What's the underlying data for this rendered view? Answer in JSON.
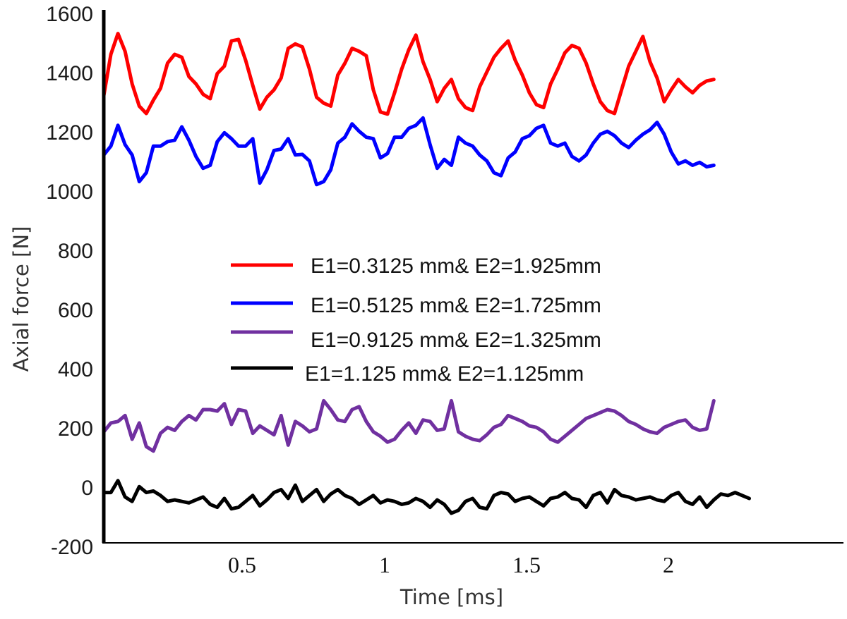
{
  "chart_data": {
    "type": "line",
    "title": "",
    "xlabel": "Time [ms]",
    "ylabel": "Axial force [N]",
    "xlim": [
      0,
      2.6
    ],
    "ylim": [
      -200,
      1600
    ],
    "x_ticks": [
      "0.5",
      "1",
      "1.5",
      "2"
    ],
    "y_ticks": [
      "1600",
      "1400",
      "1200",
      "1000",
      "800",
      "600",
      "400",
      "200",
      "0",
      "-200"
    ],
    "grid": false,
    "legend_position": "center",
    "series": [
      {
        "name": "E1=0.3125 mm& E2=1.925mm",
        "color": "#ff0000",
        "x": [
          0,
          0.025,
          0.05,
          0.075,
          0.1,
          0.125,
          0.15,
          0.175,
          0.2,
          0.225,
          0.25,
          0.275,
          0.3,
          0.325,
          0.35,
          0.375,
          0.4,
          0.425,
          0.45,
          0.475,
          0.5,
          0.525,
          0.55,
          0.575,
          0.6,
          0.625,
          0.65,
          0.675,
          0.7,
          0.725,
          0.75,
          0.775,
          0.8,
          0.825,
          0.85,
          0.875,
          0.9,
          0.925,
          0.95,
          0.975,
          1.0,
          1.025,
          1.05,
          1.075,
          1.1,
          1.125,
          1.15,
          1.175,
          1.2,
          1.225,
          1.25,
          1.275,
          1.3,
          1.325,
          1.35,
          1.375,
          1.4,
          1.425,
          1.45,
          1.475,
          1.5,
          1.525,
          1.55,
          1.575,
          1.6,
          1.625,
          1.65,
          1.675,
          1.7,
          1.725,
          1.75,
          1.775,
          1.8,
          1.825,
          1.85,
          1.875,
          1.9,
          1.925,
          1.95,
          1.975,
          2.0,
          2.025,
          2.05,
          2.075,
          2.1,
          2.125,
          2.15
        ],
        "values": [
          1310,
          1450,
          1520,
          1460,
          1350,
          1275,
          1250,
          1295,
          1335,
          1420,
          1450,
          1440,
          1375,
          1350,
          1315,
          1300,
          1385,
          1410,
          1495,
          1500,
          1430,
          1345,
          1265,
          1305,
          1330,
          1370,
          1470,
          1485,
          1475,
          1400,
          1305,
          1285,
          1275,
          1380,
          1420,
          1470,
          1460,
          1445,
          1330,
          1255,
          1248,
          1320,
          1400,
          1465,
          1515,
          1425,
          1365,
          1290,
          1335,
          1365,
          1300,
          1270,
          1260,
          1340,
          1390,
          1440,
          1470,
          1495,
          1430,
          1380,
          1320,
          1280,
          1270,
          1350,
          1400,
          1455,
          1480,
          1470,
          1420,
          1350,
          1290,
          1260,
          1250,
          1330,
          1410,
          1460,
          1510,
          1425,
          1370,
          1290,
          1330,
          1365,
          1340,
          1320,
          1345,
          1360,
          1365
        ]
      },
      {
        "name": "E1=0.5125 mm& E2=1.725mm",
        "color": "#0000ff",
        "x": [
          0,
          0.025,
          0.05,
          0.075,
          0.1,
          0.125,
          0.15,
          0.175,
          0.2,
          0.225,
          0.25,
          0.275,
          0.3,
          0.325,
          0.35,
          0.375,
          0.4,
          0.425,
          0.45,
          0.475,
          0.5,
          0.525,
          0.55,
          0.575,
          0.6,
          0.625,
          0.65,
          0.675,
          0.7,
          0.725,
          0.75,
          0.775,
          0.8,
          0.825,
          0.85,
          0.875,
          0.9,
          0.925,
          0.95,
          0.975,
          1.0,
          1.025,
          1.05,
          1.075,
          1.1,
          1.125,
          1.15,
          1.175,
          1.2,
          1.225,
          1.25,
          1.275,
          1.3,
          1.325,
          1.35,
          1.375,
          1.4,
          1.425,
          1.45,
          1.475,
          1.5,
          1.525,
          1.55,
          1.575,
          1.6,
          1.625,
          1.65,
          1.675,
          1.7,
          1.725,
          1.75,
          1.775,
          1.8,
          1.825,
          1.85,
          1.875,
          1.9,
          1.925,
          1.95,
          1.975,
          2.0,
          2.025,
          2.05,
          2.075,
          2.1,
          2.125,
          2.15
        ],
        "values": [
          1110,
          1140,
          1210,
          1145,
          1110,
          1020,
          1050,
          1140,
          1140,
          1155,
          1160,
          1205,
          1160,
          1105,
          1065,
          1075,
          1155,
          1185,
          1165,
          1140,
          1140,
          1165,
          1015,
          1060,
          1125,
          1130,
          1165,
          1110,
          1112,
          1090,
          1010,
          1020,
          1060,
          1150,
          1170,
          1215,
          1190,
          1170,
          1165,
          1100,
          1115,
          1170,
          1170,
          1200,
          1210,
          1235,
          1145,
          1065,
          1095,
          1075,
          1170,
          1150,
          1140,
          1110,
          1090,
          1050,
          1040,
          1100,
          1120,
          1165,
          1175,
          1200,
          1210,
          1150,
          1140,
          1150,
          1105,
          1090,
          1110,
          1150,
          1180,
          1190,
          1175,
          1150,
          1135,
          1160,
          1180,
          1195,
          1220,
          1180,
          1120,
          1080,
          1090,
          1075,
          1085,
          1070,
          1075
        ]
      },
      {
        "name": "E1=0.9125 mm& E2=1.325mm",
        "color": "#7030a0",
        "x": [
          0,
          0.025,
          0.05,
          0.075,
          0.1,
          0.125,
          0.15,
          0.175,
          0.2,
          0.225,
          0.25,
          0.275,
          0.3,
          0.325,
          0.35,
          0.375,
          0.4,
          0.425,
          0.45,
          0.475,
          0.5,
          0.525,
          0.55,
          0.575,
          0.6,
          0.625,
          0.65,
          0.675,
          0.7,
          0.725,
          0.75,
          0.775,
          0.8,
          0.825,
          0.85,
          0.875,
          0.9,
          0.925,
          0.95,
          0.975,
          1.0,
          1.025,
          1.05,
          1.075,
          1.1,
          1.125,
          1.15,
          1.175,
          1.2,
          1.225,
          1.25,
          1.275,
          1.3,
          1.325,
          1.35,
          1.375,
          1.4,
          1.425,
          1.45,
          1.475,
          1.5,
          1.525,
          1.55,
          1.575,
          1.6,
          1.625,
          1.65,
          1.675,
          1.7,
          1.725,
          1.75,
          1.775,
          1.8,
          1.825,
          1.85,
          1.875,
          1.9,
          1.925,
          1.95,
          1.975,
          2.0,
          2.025,
          2.05,
          2.075,
          2.1,
          2.125,
          2.15
        ],
        "values": [
          175,
          205,
          210,
          230,
          150,
          205,
          125,
          110,
          170,
          190,
          180,
          210,
          230,
          215,
          250,
          250,
          245,
          270,
          200,
          250,
          245,
          170,
          195,
          180,
          165,
          230,
          130,
          210,
          195,
          175,
          185,
          280,
          250,
          215,
          210,
          250,
          260,
          210,
          175,
          160,
          140,
          150,
          180,
          205,
          170,
          215,
          210,
          180,
          185,
          280,
          175,
          160,
          150,
          145,
          165,
          190,
          200,
          230,
          220,
          210,
          195,
          190,
          175,
          150,
          140,
          160,
          180,
          200,
          220,
          230,
          240,
          250,
          245,
          230,
          210,
          200,
          185,
          175,
          170,
          190,
          200,
          210,
          215,
          190,
          180,
          185,
          280
        ]
      },
      {
        "name": "E1=1.125 mm& E2=1.125mm",
        "color": "#000000",
        "x": [
          0,
          0.025,
          0.05,
          0.075,
          0.1,
          0.125,
          0.15,
          0.175,
          0.2,
          0.225,
          0.25,
          0.275,
          0.3,
          0.325,
          0.35,
          0.375,
          0.4,
          0.425,
          0.45,
          0.475,
          0.5,
          0.525,
          0.55,
          0.575,
          0.6,
          0.625,
          0.65,
          0.675,
          0.7,
          0.725,
          0.75,
          0.775,
          0.8,
          0.825,
          0.85,
          0.875,
          0.9,
          0.925,
          0.95,
          0.975,
          1.0,
          1.025,
          1.05,
          1.075,
          1.1,
          1.125,
          1.15,
          1.175,
          1.2,
          1.225,
          1.25,
          1.275,
          1.3,
          1.325,
          1.35,
          1.375,
          1.4,
          1.425,
          1.45,
          1.475,
          1.5,
          1.525,
          1.55,
          1.575,
          1.6,
          1.625,
          1.65,
          1.675,
          1.7,
          1.725,
          1.75,
          1.775,
          1.8,
          1.825,
          1.85,
          1.875,
          1.9,
          1.925,
          1.95,
          1.975,
          2.0,
          2.025,
          2.05,
          2.075,
          2.1,
          2.125,
          2.15,
          2.175,
          2.2,
          2.225,
          2.25,
          2.275
        ],
        "values": [
          -30,
          -30,
          10,
          -45,
          -60,
          -10,
          -30,
          -25,
          -40,
          -60,
          -55,
          -60,
          -65,
          -55,
          -45,
          -70,
          -80,
          -50,
          -85,
          -80,
          -60,
          -40,
          -75,
          -55,
          -30,
          -20,
          -50,
          -5,
          -60,
          -40,
          -20,
          -60,
          -35,
          -20,
          -40,
          -50,
          -70,
          -55,
          -40,
          -65,
          -55,
          -60,
          -70,
          -65,
          -50,
          -60,
          -80,
          -55,
          -70,
          -100,
          -90,
          -60,
          -50,
          -80,
          -85,
          -40,
          -30,
          -35,
          -60,
          -50,
          -45,
          -60,
          -75,
          -50,
          -45,
          -30,
          -50,
          -55,
          -80,
          -40,
          -30,
          -65,
          -20,
          -40,
          -45,
          -55,
          -50,
          -45,
          -55,
          -60,
          -40,
          -30,
          -60,
          -70,
          -45,
          -80,
          -55,
          -35,
          -40,
          -30,
          -40,
          -50
        ]
      }
    ]
  }
}
